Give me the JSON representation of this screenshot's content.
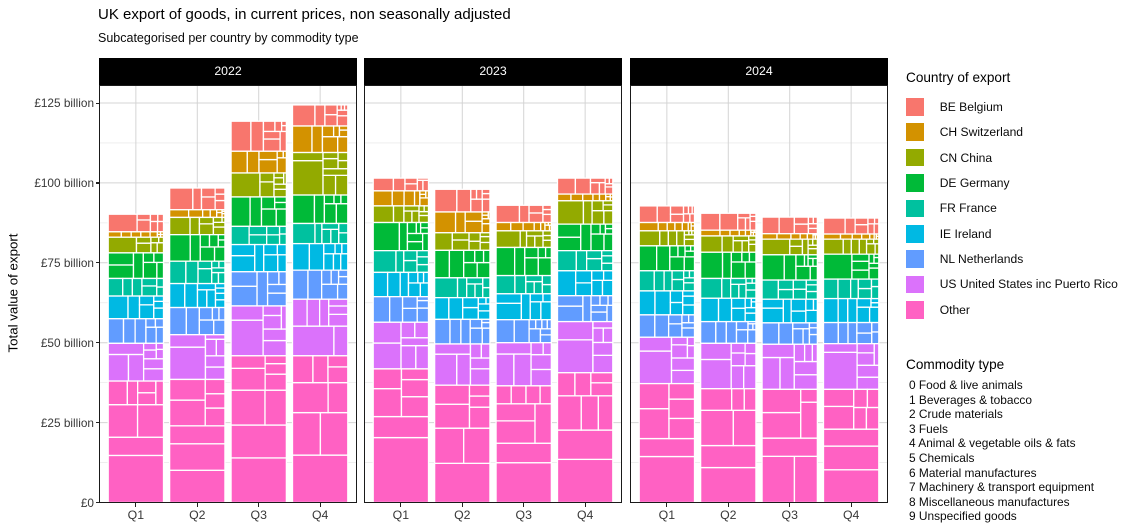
{
  "header": {
    "title": "UK export of goods, in current prices, non seasonally adjusted",
    "subtitle": "Subcategorised per country by commodity type"
  },
  "y_axis": {
    "title": "Total value of export",
    "ticks": [
      {
        "label": "£0",
        "value": 0
      },
      {
        "label": "£25 billion",
        "value": 25
      },
      {
        "label": "£50 billion",
        "value": 50
      },
      {
        "label": "£75 billion",
        "value": 75
      },
      {
        "label": "£100 billion",
        "value": 100
      },
      {
        "label": "£125 billion",
        "value": 125
      }
    ]
  },
  "x_axis": {
    "labels": [
      "Q1",
      "Q2",
      "Q3",
      "Q4"
    ]
  },
  "facet_labels": [
    "2022",
    "2023",
    "2024"
  ],
  "legend": {
    "title": "Country of export",
    "items": [
      {
        "label": "BE Belgium",
        "color": "#F8766D"
      },
      {
        "label": "CH Switzerland",
        "color": "#D39200"
      },
      {
        "label": "CN China",
        "color": "#93AA00"
      },
      {
        "label": "DE Germany",
        "color": "#00BA38"
      },
      {
        "label": "FR France",
        "color": "#00C19F"
      },
      {
        "label": "IE Ireland",
        "color": "#00B9E3"
      },
      {
        "label": "NL Netherlands",
        "color": "#619CFF"
      },
      {
        "label": "US United States inc Puerto Rico",
        "color": "#DB72FB"
      },
      {
        "label": "Other",
        "color": "#FF61C3"
      }
    ],
    "commodity": {
      "title": "Commodity type",
      "items": [
        "0 Food & live animals",
        "1 Beverages & tobacco",
        "2 Crude materials",
        "3 Fuels",
        "4 Animal & vegetable oils & fats",
        "5 Chemicals",
        "6 Material manufactures",
        "7 Machinery & transport equipment",
        "8 Miscellaneous manufactures",
        "9 Unspecified goods"
      ]
    }
  },
  "chart_data": {
    "type": "mosaic-stacked-bar",
    "unit": "£ billion",
    "ylim": [
      0,
      130.6
    ],
    "x": [
      "Q1",
      "Q2",
      "Q3",
      "Q4"
    ],
    "stacking_order_top_to_bottom": [
      "BE Belgium",
      "CH Switzerland",
      "CN China",
      "DE Germany",
      "FR France",
      "IE Ireland",
      "NL Netherlands",
      "US United States inc Puerto Rico",
      "Other"
    ],
    "facets": [
      {
        "year": "2022",
        "series": [
          {
            "name": "BE Belgium",
            "values": [
              5.5,
              6.8,
              9.4,
              6.6
            ]
          },
          {
            "name": "CH Switzerland",
            "values": [
              1.7,
              2.4,
              6.8,
              8.3
            ]
          },
          {
            "name": "CN China",
            "values": [
              4.9,
              5.4,
              7.5,
              13.3
            ]
          },
          {
            "name": "DE Germany",
            "values": [
              8.0,
              8.3,
              9.2,
              8.9
            ]
          },
          {
            "name": "FR France",
            "values": [
              5.5,
              7.0,
              5.7,
              6.3
            ]
          },
          {
            "name": "IE Ireland",
            "values": [
              7.1,
              7.5,
              8.5,
              8.3
            ]
          },
          {
            "name": "NL Netherlands",
            "values": [
              7.7,
              8.5,
              10.7,
              9.1
            ]
          },
          {
            "name": "US United States inc Puerto Rico",
            "values": [
              11.8,
              14.0,
              15.6,
              17.7
            ]
          },
          {
            "name": "Other",
            "values": [
              38.0,
              38.5,
              45.9,
              45.9
            ]
          }
        ]
      },
      {
        "year": "2023",
        "series": [
          {
            "name": "BE Belgium",
            "values": [
              4.0,
              7.1,
              5.4,
              5.0
            ]
          },
          {
            "name": "CH Switzerland",
            "values": [
              4.7,
              6.5,
              2.6,
              2.1
            ]
          },
          {
            "name": "CN China",
            "values": [
              5.2,
              5.5,
              5.2,
              7.3
            ]
          },
          {
            "name": "DE Germany",
            "values": [
              8.8,
              8.6,
              8.8,
              8.3
            ]
          },
          {
            "name": "FR France",
            "values": [
              6.8,
              6.2,
              5.7,
              6.3
            ]
          },
          {
            "name": "IE Ireland",
            "values": [
              7.6,
              6.8,
              8.1,
              7.8
            ]
          },
          {
            "name": "NL Netherlands",
            "values": [
              8.0,
              7.7,
              7.2,
              8.1
            ]
          },
          {
            "name": "US United States inc Puerto Rico",
            "values": [
              14.6,
              12.9,
              13.5,
              16.0
            ]
          },
          {
            "name": "Other",
            "values": [
              41.8,
              36.7,
              36.5,
              40.6
            ]
          }
        ]
      },
      {
        "year": "2024",
        "series": [
          {
            "name": "BE Belgium",
            "values": [
              5.2,
              5.3,
              5.2,
              5.0
            ]
          },
          {
            "name": "CH Switzerland",
            "values": [
              2.6,
              1.8,
              1.7,
              1.6
            ]
          },
          {
            "name": "CN China",
            "values": [
              4.7,
              5.1,
              4.9,
              4.7
            ]
          },
          {
            "name": "DE Germany",
            "values": [
              7.8,
              8.2,
              7.9,
              7.8
            ]
          },
          {
            "name": "FR France",
            "values": [
              6.3,
              6.2,
              6.0,
              6.1
            ]
          },
          {
            "name": "IE Ireland",
            "values": [
              7.5,
              7.3,
              7.4,
              7.5
            ]
          },
          {
            "name": "NL Netherlands",
            "values": [
              7.0,
              6.8,
              6.7,
              6.6
            ]
          },
          {
            "name": "US United States inc Puerto Rico",
            "values": [
              14.5,
              14.2,
              14.1,
              14.3
            ]
          },
          {
            "name": "Other",
            "values": [
              37.2,
              35.6,
              35.4,
              35.4
            ]
          }
        ]
      }
    ],
    "quarter_totals": {
      "2022": [
        90.2,
        98.4,
        119.3,
        124.4
      ],
      "2023": [
        101.5,
        98.0,
        93.0,
        101.5
      ],
      "2024": [
        92.8,
        90.5,
        89.3,
        89.0
      ]
    },
    "commodity_mix": {
      "BE Belgium": [
        0.06,
        0.02,
        0.03,
        0.09,
        0.005,
        0.33,
        0.11,
        0.24,
        0.085,
        0.03
      ],
      "CH Switzerland": [
        0.03,
        0.02,
        0.02,
        0.02,
        0.005,
        0.22,
        0.1,
        0.27,
        0.24,
        0.075
      ],
      "CN China": [
        0.05,
        0.04,
        0.09,
        0.02,
        0.005,
        0.13,
        0.1,
        0.42,
        0.12,
        0.025
      ],
      "DE Germany": [
        0.05,
        0.02,
        0.04,
        0.07,
        0.005,
        0.17,
        0.13,
        0.38,
        0.11,
        0.025
      ],
      "FR France": [
        0.09,
        0.07,
        0.03,
        0.08,
        0.005,
        0.18,
        0.12,
        0.3,
        0.1,
        0.025
      ],
      "IE Ireland": [
        0.12,
        0.04,
        0.02,
        0.08,
        0.01,
        0.21,
        0.13,
        0.26,
        0.1,
        0.03
      ],
      "NL Netherlands": [
        0.08,
        0.03,
        0.04,
        0.2,
        0.01,
        0.19,
        0.11,
        0.24,
        0.08,
        0.02
      ],
      "US United States inc Puerto Rico": [
        0.04,
        0.05,
        0.02,
        0.09,
        0.003,
        0.157,
        0.1,
        0.35,
        0.14,
        0.05
      ],
      "Other": [
        0.07,
        0.04,
        0.03,
        0.1,
        0.005,
        0.155,
        0.12,
        0.35,
        0.1,
        0.03
      ]
    }
  }
}
